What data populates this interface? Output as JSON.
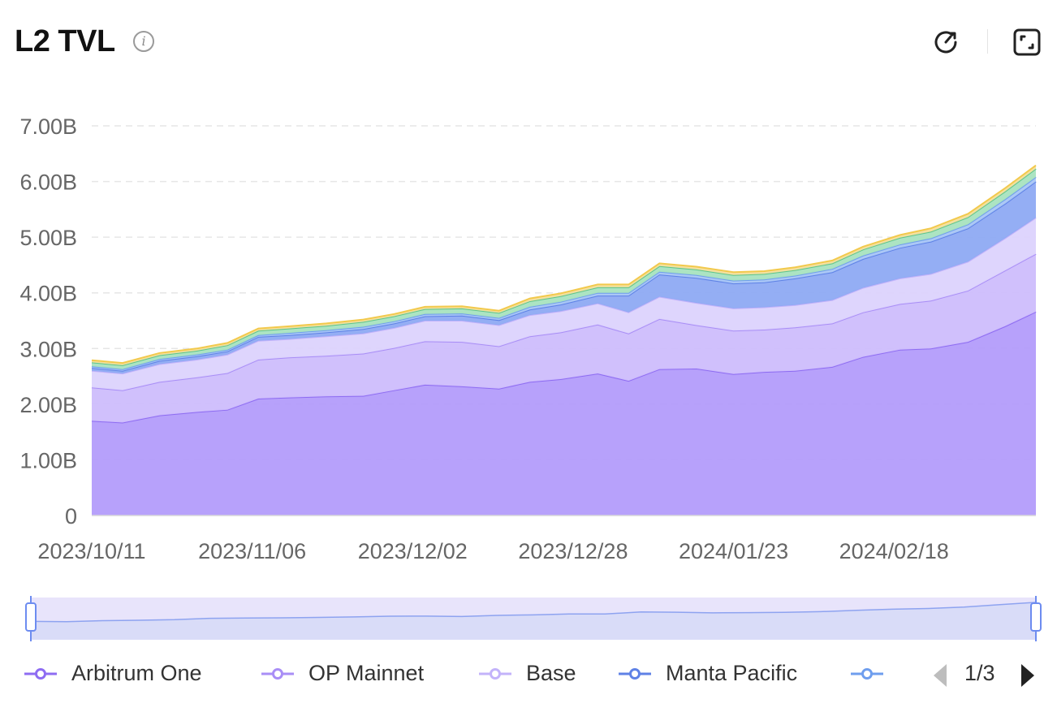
{
  "header": {
    "title": "L2 TVL",
    "info_glyph": "i"
  },
  "toolbar": {
    "icons": [
      "refresh-icon",
      "fullscreen-icon"
    ]
  },
  "chart_data": {
    "type": "area",
    "stacked": true,
    "y_tick_labels": [
      "0",
      "1.00B",
      "2.00B",
      "3.00B",
      "4.00B",
      "5.00B",
      "6.00B",
      "7.00B"
    ],
    "ylim": [
      0,
      7000000000
    ],
    "x_tick_labels": [
      "2023/10/11",
      "2023/11/06",
      "2023/12/02",
      "2023/12/28",
      "2024/01/23",
      "2024/02/18"
    ],
    "x": [
      "2023/10/11",
      "2023/10/16",
      "2023/10/22",
      "2023/10/28",
      "2023/11/02",
      "2023/11/07",
      "2023/11/12",
      "2023/11/18",
      "2023/11/24",
      "2023/11/29",
      "2023/12/04",
      "2023/12/10",
      "2023/12/16",
      "2023/12/21",
      "2023/12/26",
      "2024/01/01",
      "2024/01/06",
      "2024/01/11",
      "2024/01/17",
      "2024/01/23",
      "2024/01/28",
      "2024/02/02",
      "2024/02/08",
      "2024/02/13",
      "2024/02/19",
      "2024/02/24",
      "2024/03/01",
      "2024/03/07",
      "2024/03/12"
    ],
    "grid": "horizontal dashed",
    "series": [
      {
        "name": "Arbitrum One",
        "color": "#b39cfb",
        "stroke": "#8e6cf2",
        "values": [
          1.7,
          1.67,
          1.8,
          1.86,
          1.9,
          2.1,
          2.12,
          2.14,
          2.15,
          2.25,
          2.35,
          2.32,
          2.28,
          2.4,
          2.45,
          2.55,
          2.42,
          2.63,
          2.64,
          2.54,
          2.58,
          2.6,
          2.67,
          2.85,
          2.98,
          3.0,
          3.12,
          3.4,
          3.66
        ]
      },
      {
        "name": "OP Mainnet",
        "color": "#cdbdfc",
        "stroke": "#a98ef6",
        "values": [
          0.6,
          0.58,
          0.6,
          0.62,
          0.66,
          0.7,
          0.72,
          0.73,
          0.76,
          0.76,
          0.78,
          0.8,
          0.76,
          0.82,
          0.84,
          0.88,
          0.85,
          0.9,
          0.78,
          0.78,
          0.76,
          0.78,
          0.78,
          0.8,
          0.82,
          0.86,
          0.92,
          1.0,
          1.04
        ]
      },
      {
        "name": "Base",
        "color": "#dcd3fd",
        "stroke": "#c3b3fa",
        "values": [
          0.3,
          0.3,
          0.32,
          0.32,
          0.33,
          0.34,
          0.33,
          0.35,
          0.36,
          0.36,
          0.37,
          0.38,
          0.38,
          0.38,
          0.38,
          0.38,
          0.38,
          0.4,
          0.4,
          0.4,
          0.4,
          0.4,
          0.42,
          0.44,
          0.46,
          0.48,
          0.52,
          0.58,
          0.65
        ]
      },
      {
        "name": "Manta Pacific",
        "color": "#8eaaf3",
        "stroke": "#5f82e6",
        "values": [
          0.05,
          0.05,
          0.06,
          0.06,
          0.06,
          0.07,
          0.07,
          0.07,
          0.08,
          0.08,
          0.08,
          0.09,
          0.09,
          0.1,
          0.12,
          0.14,
          0.3,
          0.4,
          0.45,
          0.45,
          0.45,
          0.48,
          0.5,
          0.52,
          0.55,
          0.58,
          0.6,
          0.62,
          0.65
        ]
      },
      {
        "name": "",
        "color": "#a9c6f6",
        "stroke": "#6f9eee",
        "values": [
          0.03,
          0.03,
          0.03,
          0.03,
          0.03,
          0.03,
          0.04,
          0.04,
          0.04,
          0.04,
          0.04,
          0.04,
          0.04,
          0.05,
          0.05,
          0.05,
          0.05,
          0.05,
          0.05,
          0.05,
          0.05,
          0.05,
          0.06,
          0.06,
          0.06,
          0.06,
          0.07,
          0.08,
          0.08
        ]
      },
      {
        "name": "",
        "color": "#a8e3bf",
        "stroke": "#5cc58e",
        "values": [
          0.07,
          0.07,
          0.07,
          0.07,
          0.08,
          0.08,
          0.08,
          0.08,
          0.09,
          0.09,
          0.09,
          0.09,
          0.09,
          0.1,
          0.1,
          0.1,
          0.1,
          0.1,
          0.1,
          0.1,
          0.1,
          0.1,
          0.1,
          0.11,
          0.12,
          0.12,
          0.13,
          0.14,
          0.15
        ]
      },
      {
        "name": "",
        "color": "#f4df9c",
        "stroke": "#f2c94c",
        "values": [
          0.04,
          0.04,
          0.04,
          0.04,
          0.04,
          0.04,
          0.04,
          0.04,
          0.04,
          0.04,
          0.04,
          0.04,
          0.04,
          0.05,
          0.05,
          0.05,
          0.05,
          0.05,
          0.05,
          0.05,
          0.05,
          0.05,
          0.05,
          0.05,
          0.05,
          0.06,
          0.06,
          0.06,
          0.06
        ]
      }
    ],
    "value_unit": "B"
  },
  "legend": {
    "items": [
      {
        "label": "Arbitrum One",
        "color": "#8e6cf2"
      },
      {
        "label": "OP Mainnet",
        "color": "#a98ef6"
      },
      {
        "label": "Base",
        "color": "#c3b3fa"
      },
      {
        "label": "Manta Pacific",
        "color": "#5f82e6"
      },
      {
        "label": "",
        "color": "#6f9eee"
      }
    ],
    "page": "1/3"
  },
  "colors": {
    "zoom_bar_fill": "#e8e4fb",
    "zoom_line": "#8ea3f0",
    "handle": "#6d8cf0"
  }
}
